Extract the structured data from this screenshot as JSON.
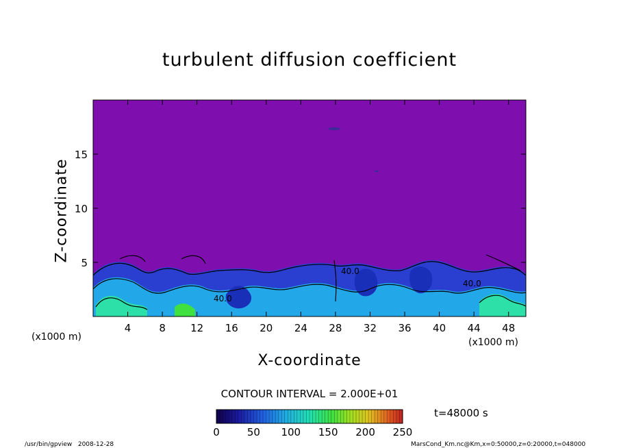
{
  "chart_data": {
    "type": "heatmap",
    "title": "turbulent diffusion coefficient",
    "xlabel": "X-coordinate",
    "ylabel": "Z-coordinate",
    "x_unit": "(x1000 m)",
    "y_unit": "(x1000 m)",
    "xlim": [
      0,
      50
    ],
    "ylim": [
      0,
      20
    ],
    "x_ticks": [
      4,
      8,
      12,
      16,
      20,
      24,
      28,
      32,
      36,
      40,
      44,
      48
    ],
    "y_ticks": [
      5,
      10,
      15
    ],
    "colorbar": {
      "ticks": [
        0,
        50,
        100,
        150,
        200,
        250
      ],
      "range": [
        0,
        250
      ],
      "colors": [
        "#0a0060",
        "#1a1aa0",
        "#2060e0",
        "#20b0e0",
        "#20e0b0",
        "#30e040",
        "#a0e020",
        "#e0c020",
        "#e06020",
        "#c02020"
      ]
    },
    "contour_interval": "CONTOUR INTERVAL = 2.000E+01",
    "contour_labels": [
      "40.0",
      "40.0",
      "40.0"
    ],
    "time_label": "t=48000 s",
    "background_color": "#7e0fae"
  },
  "footer": {
    "left": "/usr/bin/gpview   2008-12-28",
    "right": "MarsCond_Km.nc@Km,x=0:50000,z=0:20000,t=048000"
  }
}
